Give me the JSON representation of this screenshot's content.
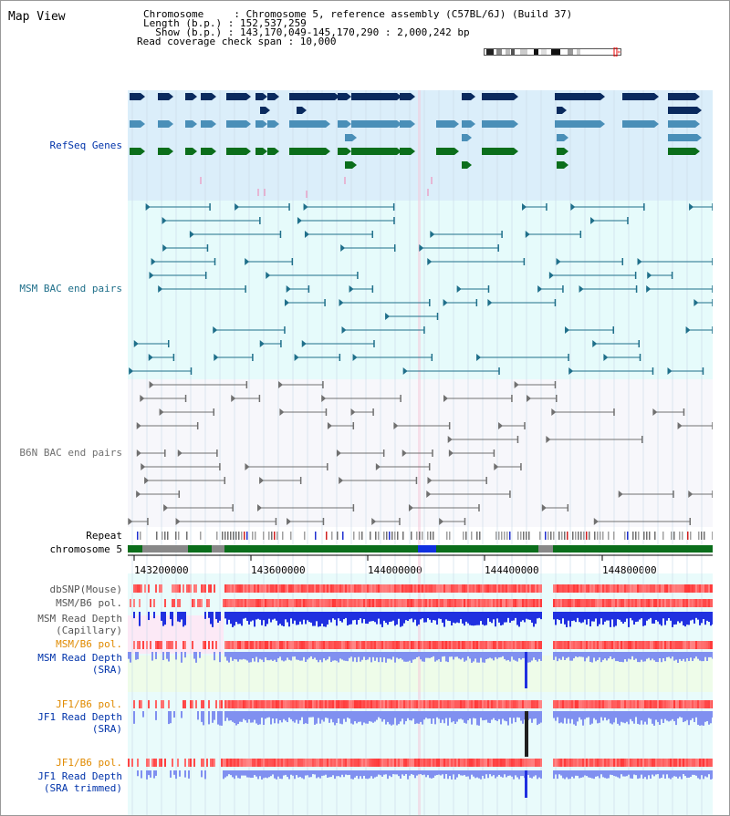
{
  "title": "Map View",
  "info": {
    "line1": "Chromosome     : Chromosome 5, reference assembly (C57BL/6J) (Build 37)",
    "line2": "Length (b.p.) : 152,537,259",
    "line3": "  Show (b.p.) : 143,170,049-145,170,290 : 2,000,242 bp",
    "line4": "Read coverage check span : 10,000"
  },
  "tracks": {
    "refseq": "RefSeq Genes",
    "msm_bac": "MSM BAC end pairs",
    "b6n_bac": "B6N BAC end pairs",
    "repeat": "Repeat",
    "chromosome": "chromosome 5",
    "dbsnp": "dbSNP(Mouse)",
    "msm_b6_pol": "MSM/B6 pol.",
    "msm_depth_cap_1": "MSM Read Depth",
    "msm_depth_cap_2": "(Capillary)",
    "msm_b6_pol_2": "MSM/B6 pol.",
    "msm_depth_sra_1": "MSM Read Depth",
    "msm_depth_sra_2": "(SRA)",
    "jf1_b6_pol": "JF1/B6 pol.",
    "jf1_depth_sra_1": "JF1 Read Depth",
    "jf1_depth_sra_2": "(SRA)",
    "jf1_b6_pol_2": "JF1/B6 pol.",
    "jf1_depth_trim_1": "JF1 Read Depth",
    "jf1_depth_trim_2": "(SRA trimmed)"
  },
  "axis": {
    "ticks": [
      "143200000",
      "143600000",
      "144000000",
      "144400000",
      "144800000"
    ]
  },
  "colors": {
    "refseq_bg": "#dbeefa",
    "msm_bac_bg": "#e6fbfb",
    "b6n_bac_bg": "#f7f7fb",
    "navy": "#0a2a5e",
    "steel": "#4a8fb8",
    "green": "#0b6e1b",
    "teal": "#1f6f8a",
    "gray": "#707070",
    "label_blue": "#0033aa",
    "label_teal": "#1f6f8a",
    "label_orange": "#e08a00"
  }
}
